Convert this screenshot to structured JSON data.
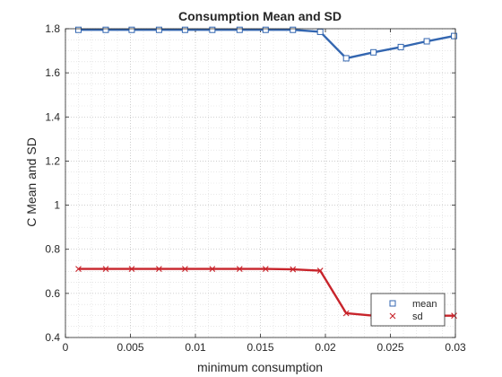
{
  "chart_data": {
    "type": "line",
    "title": "Consumption Mean and SD",
    "xlabel": "minimum consumption",
    "ylabel": "C Mean and SD",
    "xlim": [
      0,
      0.03
    ],
    "ylim": [
      0.4,
      1.8
    ],
    "xticks": [
      0,
      0.005,
      0.01,
      0.015,
      0.02,
      0.025,
      0.03
    ],
    "xtick_labels": [
      "0",
      "0.005",
      "0.01",
      "0.015",
      "0.02",
      "0.025",
      "0.03"
    ],
    "yticks": [
      0.4,
      0.6,
      0.8,
      1.0,
      1.2,
      1.4,
      1.6,
      1.8
    ],
    "ytick_labels": [
      "0.4",
      "0.6",
      "0.8",
      "1",
      "1.2",
      "1.4",
      "1.6",
      "1.8"
    ],
    "grid": true,
    "minor_grid": true,
    "legend_position": "bottom-right",
    "x": [
      0.001,
      0.0031,
      0.0051,
      0.0072,
      0.0092,
      0.0113,
      0.0134,
      0.0154,
      0.0175,
      0.0196,
      0.0216,
      0.0237,
      0.0258,
      0.0278,
      0.0299
    ],
    "series": [
      {
        "name": "mean",
        "color": "#3366B0",
        "marker": "square",
        "values": [
          1.795,
          1.795,
          1.795,
          1.795,
          1.795,
          1.795,
          1.795,
          1.795,
          1.795,
          1.786,
          1.666,
          1.693,
          1.717,
          1.743,
          1.767
        ]
      },
      {
        "name": "sd",
        "color": "#C8242B",
        "marker": "x",
        "values": [
          0.711,
          0.711,
          0.711,
          0.711,
          0.711,
          0.711,
          0.711,
          0.711,
          0.709,
          0.703,
          0.51,
          0.499,
          0.499,
          0.499,
          0.499
        ]
      }
    ]
  }
}
